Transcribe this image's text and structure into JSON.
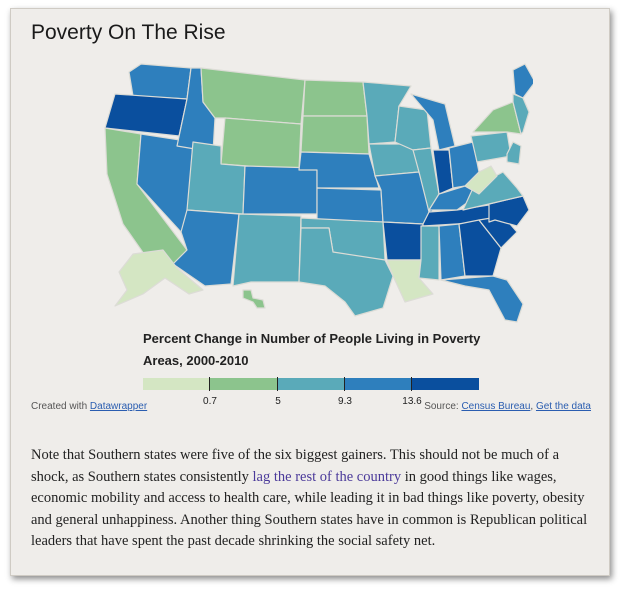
{
  "title": "Poverty On The Rise",
  "legend": {
    "title": "Percent Change in Number of People Living in Poverty Areas, 2000-2010",
    "colors": [
      "#d4e6c3",
      "#8cc48d",
      "#5aaab9",
      "#2e7fbd",
      "#0a4f9e"
    ],
    "ticks": [
      "0.7",
      "5",
      "9.3",
      "13.6"
    ]
  },
  "credit": {
    "prefix": "Created with ",
    "link": "Datawrapper"
  },
  "source": {
    "prefix": "Source: ",
    "link1": "Census Bureau",
    "sep": ", ",
    "link2": "Get the data"
  },
  "body": {
    "part1": "Note that Southern states were five of the six biggest gainers. This should not be much of a shock, as Southern states consistently ",
    "link": "lag the rest of the country",
    "part2": " in good things like wages, economic mobility and access to health care, while leading it in bad things like poverty, obesity and general unhappiness. Another thing Southern states have in common is Republican political leaders that have spent the past decade shrinking the social safety net."
  },
  "map_data": {
    "WA": 3,
    "OR": 4,
    "CA": 1,
    "NV": 3,
    "ID": 3,
    "MT": 1,
    "WY": 1,
    "UT": 2,
    "AZ": 3,
    "CO": 3,
    "NM": 2,
    "ND": 1,
    "SD": 1,
    "NE": 3,
    "KS": 3,
    "OK": 2,
    "TX": 2,
    "MN": 2,
    "IA": 2,
    "MO": 3,
    "AR": 4,
    "LA": 0,
    "WI": 2,
    "IL": 2,
    "MI": 3,
    "IN": 4,
    "OH": 3,
    "KY": 3,
    "TN": 4,
    "MS": 2,
    "AL": 3,
    "GA": 4,
    "FL": 3,
    "SC": 4,
    "NC": 4,
    "VA": 2,
    "WV": 0,
    "PA": 2,
    "NY": 1,
    "ME": 3,
    "NE_states": 2,
    "AK": 0,
    "HI": 1
  }
}
